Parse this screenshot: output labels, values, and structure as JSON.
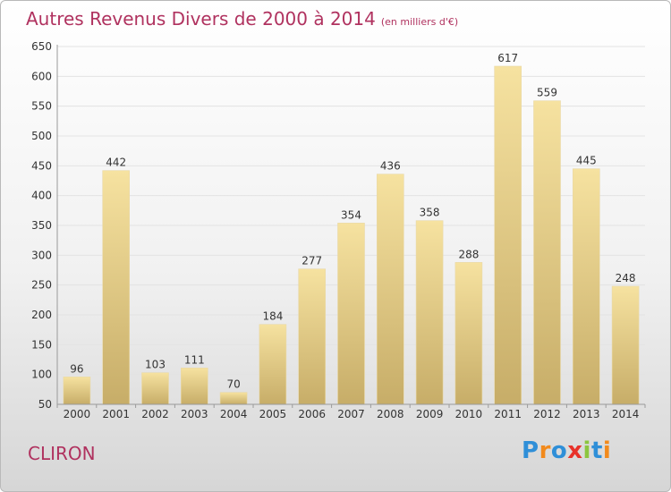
{
  "header": {
    "title": "Autres Revenus Divers de 2000 à 2014",
    "unit": "(en milliers d'€)"
  },
  "commune": "CLIRON",
  "logo": {
    "text": "Proxiti",
    "letters": [
      "P",
      "r",
      "o",
      "x",
      "i",
      "t",
      "i"
    ],
    "colors": [
      "#2f8fd8",
      "#f28a1c",
      "#2f8fd8",
      "#e8322a",
      "#8cc63f",
      "#2f8fd8",
      "#f28a1c"
    ]
  },
  "colors": {
    "title": "#b0325f",
    "bar_top": "#f6e2a0",
    "bar_bottom": "#c7ad68",
    "grid": "#e3e3e3",
    "axis": "#9a9a9a"
  },
  "chart_data": {
    "type": "bar",
    "categories": [
      "2000",
      "2001",
      "2002",
      "2003",
      "2004",
      "2005",
      "2006",
      "2007",
      "2008",
      "2009",
      "2010",
      "2011",
      "2012",
      "2013",
      "2014"
    ],
    "values": [
      96,
      442,
      103,
      111,
      70,
      184,
      277,
      354,
      436,
      358,
      288,
      617,
      559,
      445,
      248
    ],
    "ylim": [
      50,
      650
    ],
    "yticks": [
      50,
      100,
      150,
      200,
      250,
      300,
      350,
      400,
      450,
      500,
      550,
      600,
      650
    ],
    "grid": true,
    "legend": "none"
  }
}
